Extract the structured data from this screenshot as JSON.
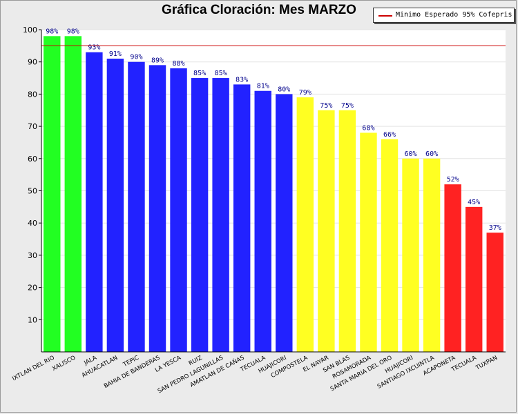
{
  "chart_data": {
    "type": "bar",
    "title": "Gráfica Cloración: Mes MARZO",
    "xlabel": "",
    "ylabel": "",
    "ylim": [
      0,
      100
    ],
    "yticks": [
      10,
      20,
      30,
      40,
      50,
      60,
      70,
      80,
      90,
      100
    ],
    "grid": true,
    "categories": [
      "IXTLAN DEL RIO",
      "XALISCO",
      "JALA",
      "AHUACATLAN",
      "TEPIC",
      "BAHIA DE BANDERAS",
      "LA YESCA",
      "RUIZ",
      "SAN PEDRO LAGUNILLAS",
      "AMATLAN DE CAÑAS",
      "TECUALA",
      "HUAJICORI",
      "COMPOSTELA",
      "EL NAYAR",
      "SAN BLAS",
      "ROSAMORADA",
      "SANTA MARIA DEL ORO",
      "HUAJICORI",
      "SANTIAGO IXCUINTLA",
      "ACAPONETA",
      "TECUALA",
      "TUXPAN"
    ],
    "values": [
      98,
      98,
      93,
      91,
      90,
      89,
      88,
      85,
      85,
      83,
      81,
      80,
      79,
      75,
      75,
      68,
      66,
      60,
      60,
      52,
      45,
      37
    ],
    "value_labels": [
      "98%",
      "98%",
      "93%",
      "91%",
      "90%",
      "89%",
      "88%",
      "85%",
      "85%",
      "83%",
      "81%",
      "80%",
      "79%",
      "75%",
      "75%",
      "68%",
      "66%",
      "60%",
      "60%",
      "52%",
      "45%",
      "37%"
    ],
    "bar_colors": [
      "#22ff22",
      "#22ff22",
      "#2222ff",
      "#2222ff",
      "#2222ff",
      "#2222ff",
      "#2222ff",
      "#2222ff",
      "#2222ff",
      "#2222ff",
      "#2222ff",
      "#2222ff",
      "#ffff22",
      "#ffff22",
      "#ffff22",
      "#ffff22",
      "#ffff22",
      "#ffff22",
      "#ffff22",
      "#ff2222",
      "#ff2222",
      "#ff2222"
    ],
    "reference_line": {
      "value": 95,
      "label": "Minimo Esperado 95% Cofepris",
      "color": "#cc0000"
    },
    "legend": {
      "position": "top-right"
    }
  }
}
